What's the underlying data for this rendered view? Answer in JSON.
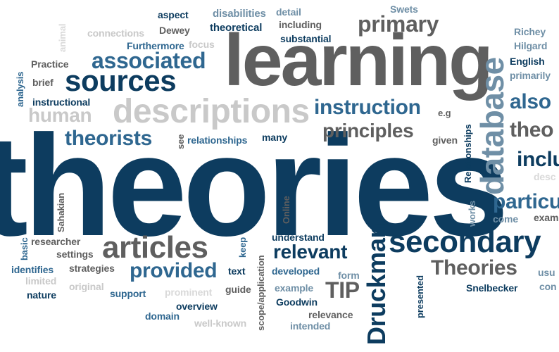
{
  "palette": {
    "navy": "#0d3c5f",
    "blue": "#2f6790",
    "steel": "#6f8fa6",
    "gray": "#5f5f5f",
    "silver": "#c9c9c9",
    "light": "#d9d9d9"
  },
  "words": [
    {
      "key": "theories_big",
      "text": "theories"
    },
    {
      "key": "learning",
      "text": "learning"
    },
    {
      "key": "descriptions",
      "text": "descriptions"
    },
    {
      "key": "sources",
      "text": "sources"
    },
    {
      "key": "associated",
      "text": "associated"
    },
    {
      "key": "articles",
      "text": "articles"
    },
    {
      "key": "secondary",
      "text": "secondary"
    },
    {
      "key": "database",
      "text": "database"
    },
    {
      "key": "druckman",
      "text": "Druckman"
    },
    {
      "key": "instruction",
      "text": "instruction"
    },
    {
      "key": "principles",
      "text": "principles"
    },
    {
      "key": "primary",
      "text": "primary"
    },
    {
      "key": "theorists",
      "text": "theorists"
    },
    {
      "key": "provided",
      "text": "provided"
    },
    {
      "key": "relevant",
      "text": "relevant"
    },
    {
      "key": "theories_cap",
      "text": "Theories"
    },
    {
      "key": "tip",
      "text": "TIP"
    },
    {
      "key": "human",
      "text": "human"
    },
    {
      "key": "also",
      "text": "also"
    },
    {
      "key": "theo",
      "text": "theo"
    },
    {
      "key": "inclu",
      "text": "inclu"
    },
    {
      "key": "particu",
      "text": "particu"
    },
    {
      "key": "aspect",
      "text": "aspect"
    },
    {
      "key": "disabilities",
      "text": "disabilities"
    },
    {
      "key": "detail",
      "text": "detail"
    },
    {
      "key": "swets",
      "text": "Swets"
    },
    {
      "key": "connections",
      "text": "connections"
    },
    {
      "key": "dewey",
      "text": "Dewey"
    },
    {
      "key": "theoretical",
      "text": "theoretical"
    },
    {
      "key": "including",
      "text": "including"
    },
    {
      "key": "substantial",
      "text": "substantial"
    },
    {
      "key": "animal",
      "text": "animal"
    },
    {
      "key": "furthermore",
      "text": "Furthermore"
    },
    {
      "key": "focus",
      "text": "focus"
    },
    {
      "key": "richey",
      "text": "Richey"
    },
    {
      "key": "hilgard",
      "text": "Hilgard"
    },
    {
      "key": "english",
      "text": "English"
    },
    {
      "key": "primarily",
      "text": "primarily"
    },
    {
      "key": "practice",
      "text": "Practice"
    },
    {
      "key": "brief",
      "text": "brief"
    },
    {
      "key": "analysis",
      "text": "analysis"
    },
    {
      "key": "instructional",
      "text": "instructional"
    },
    {
      "key": "see",
      "text": "see"
    },
    {
      "key": "relationships",
      "text": "relationships"
    },
    {
      "key": "many",
      "text": "many"
    },
    {
      "key": "eg",
      "text": "e.g"
    },
    {
      "key": "given",
      "text": "given"
    },
    {
      "key": "relationships_cap",
      "text": "Relationships"
    },
    {
      "key": "desc",
      "text": "desc"
    },
    {
      "key": "sahakian",
      "text": "Sahakian"
    },
    {
      "key": "online",
      "text": "Online"
    },
    {
      "key": "works",
      "text": "works"
    },
    {
      "key": "come",
      "text": "come"
    },
    {
      "key": "exam",
      "text": "exam"
    },
    {
      "key": "basic",
      "text": "basic"
    },
    {
      "key": "researcher",
      "text": "researcher"
    },
    {
      "key": "settings",
      "text": "settings"
    },
    {
      "key": "keep",
      "text": "keep"
    },
    {
      "key": "scope",
      "text": "scope/application"
    },
    {
      "key": "understand",
      "text": "understand"
    },
    {
      "key": "identifies",
      "text": "identifies"
    },
    {
      "key": "strategies",
      "text": "strategies"
    },
    {
      "key": "text",
      "text": "text"
    },
    {
      "key": "developed",
      "text": "developed"
    },
    {
      "key": "form",
      "text": "form"
    },
    {
      "key": "presented",
      "text": "presented"
    },
    {
      "key": "usu",
      "text": "usu"
    },
    {
      "key": "limited",
      "text": "limited"
    },
    {
      "key": "original",
      "text": "original"
    },
    {
      "key": "example",
      "text": "example"
    },
    {
      "key": "snelbecker",
      "text": "Snelbecker"
    },
    {
      "key": "con",
      "text": "con"
    },
    {
      "key": "nature",
      "text": "nature"
    },
    {
      "key": "support",
      "text": "support"
    },
    {
      "key": "prominent",
      "text": "prominent"
    },
    {
      "key": "guide",
      "text": "guide"
    },
    {
      "key": "goodwin",
      "text": "Goodwin"
    },
    {
      "key": "overview",
      "text": "overview"
    },
    {
      "key": "domain",
      "text": "domain"
    },
    {
      "key": "wellknown",
      "text": "well-known"
    },
    {
      "key": "relevance",
      "text": "relevance"
    },
    {
      "key": "intended",
      "text": "intended"
    }
  ]
}
